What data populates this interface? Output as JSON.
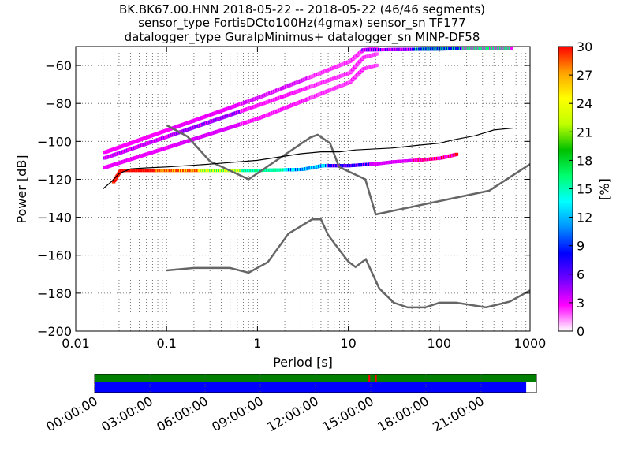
{
  "title_lines": [
    "BK.BK67.00.HNN   2018-05-22 -- 2018-05-22  (46/46 segments)",
    "sensor_type FortisDCto100Hz(4gmax) sensor_sn TF177",
    "datalogger_type GuralpMinimus+ datalogger_sn MINP-DF58"
  ],
  "chart_data": [
    {
      "type": "heatmap",
      "title": "BK.BK67.00.HNN   2018-05-22 -- 2018-05-22  (46/46 segments)",
      "xlabel": "Period [s]",
      "ylabel": "Power [dB]",
      "xscale": "log",
      "xlim": [
        0.01,
        1000
      ],
      "ylim": [
        -200,
        -50
      ],
      "x_ticks": [
        0.01,
        0.1,
        1,
        10,
        100,
        1000
      ],
      "x_tick_labels": [
        "0.01",
        "0.1",
        "1",
        "10",
        "100",
        "1000"
      ],
      "y_ticks": [
        -200,
        -180,
        -160,
        -140,
        -120,
        -100,
        -80,
        -60
      ],
      "y_tick_labels": [
        "−200",
        "−180",
        "−160",
        "−140",
        "−120",
        "−100",
        "−80",
        "−60"
      ],
      "colorbar": {
        "label": "[%]",
        "min": 0,
        "max": 30,
        "ticks": [
          0,
          3,
          6,
          9,
          12,
          15,
          18,
          21,
          24,
          27,
          30
        ],
        "tick_labels": [
          "0",
          "3",
          "6",
          "9",
          "12",
          "15",
          "18",
          "21",
          "24",
          "27",
          "30"
        ],
        "colors": [
          "#ffffff",
          "#ff00ff",
          "#7000ff",
          "#0000ff",
          "#0090ff",
          "#00ffff",
          "#00ff70",
          "#00c000",
          "#c0ff00",
          "#ffff00",
          "#ffa000",
          "#ff0000"
        ]
      },
      "grid": true,
      "series": [
        {
          "role": "noise-model-high",
          "color": "#666666",
          "x": [
            0.1,
            0.17,
            0.3,
            0.8,
            3.8,
            4.6,
            6.3,
            7.9,
            15.4,
            20,
            354.8,
            1000
          ],
          "y": [
            -91.5,
            -97.4,
            -110.5,
            -120,
            -98,
            -96.5,
            -101,
            -113.5,
            -120,
            -138.5,
            -126,
            -112
          ]
        },
        {
          "role": "noise-model-low",
          "color": "#666666",
          "x": [
            0.1,
            0.2,
            0.5,
            0.8,
            1.3,
            2.2,
            4,
            5,
            6,
            8,
            10,
            12,
            15.6,
            21.9,
            31.6,
            45,
            70,
            101,
            154,
            328,
            600,
            1000
          ],
          "y": [
            -168,
            -166.7,
            -166.7,
            -169.2,
            -163.7,
            -148.6,
            -141.1,
            -141.1,
            -149.3,
            -157.3,
            -163.3,
            -166.2,
            -162.1,
            -177.5,
            -185,
            -187.5,
            -187.5,
            -185,
            -185,
            -187.5,
            -184.4,
            -178.5
          ]
        },
        {
          "role": "mean",
          "color": "#000000",
          "x": [
            0.02,
            0.025,
            0.03,
            0.04,
            0.06,
            0.1,
            0.3,
            1,
            3,
            5,
            8,
            12,
            30,
            60,
            100,
            150,
            250,
            400,
            650
          ],
          "y": [
            -125,
            -121,
            -117,
            -114.5,
            -114,
            -113.5,
            -112,
            -110,
            -106.5,
            -105.5,
            -105.5,
            -104.5,
            -103.5,
            -102,
            -101,
            -99,
            -97,
            -94,
            -93
          ]
        }
      ],
      "bands": [
        {
          "role": "upper-low",
          "x": [
            0.02,
            1,
            10,
            14,
            20
          ],
          "y": [
            -114,
            -88,
            -69,
            -62,
            -60
          ],
          "colors": [
            "#ff00ff",
            "#cc00ff",
            "#ff00ff",
            "#ff55ff"
          ]
        },
        {
          "role": "upper-mid",
          "x": [
            0.02,
            1,
            10,
            14,
            20
          ],
          "y": [
            -109,
            -81,
            -64,
            -56,
            -54
          ],
          "colors": [
            "#ff00ff",
            "#7000ff",
            "#ff00ff",
            "#ff55ff"
          ]
        },
        {
          "role": "upper-high",
          "x": [
            0.02,
            1,
            10,
            14,
            20
          ],
          "y": [
            -106,
            -77,
            -58,
            -52,
            -51
          ],
          "colors": [
            "#ff00ff",
            "#ff00ff",
            "#cc00ff",
            "#ff55ff"
          ]
        },
        {
          "role": "top-segments",
          "x": [
            14,
            100,
            600
          ],
          "y": [
            -52,
            -51.5,
            -51
          ],
          "colors": [
            "#ff00ff",
            "#0000ff",
            "#00ff70"
          ]
        },
        {
          "role": "lower-band",
          "x": [
            0.025,
            0.03,
            0.3,
            1,
            3,
            5,
            8,
            10,
            14,
            20,
            30,
            60,
            100,
            150
          ],
          "y": [
            -121.5,
            -115.5,
            -115.5,
            -115.5,
            -115,
            -113,
            -113,
            -113,
            -112.5,
            -112,
            -111,
            -110,
            -109,
            -107
          ],
          "colors": [
            "#ff0000",
            "#ff3000",
            "#ffff00",
            "#00ff70",
            "#00ffff",
            "#0000ff",
            "#cc00ff",
            "#ff00ff"
          ]
        }
      ]
    },
    {
      "type": "timeline",
      "x_tick_labels": [
        "00:00:00",
        "03:00:00",
        "06:00:00",
        "09:00:00",
        "12:00:00",
        "15:00:00",
        "18:00:00",
        "21:00:00"
      ],
      "segments_color": "#008000",
      "psd_color": "#0000ff",
      "gap_mark_color": "#ff0000",
      "covered_fraction": 0.977
    }
  ]
}
